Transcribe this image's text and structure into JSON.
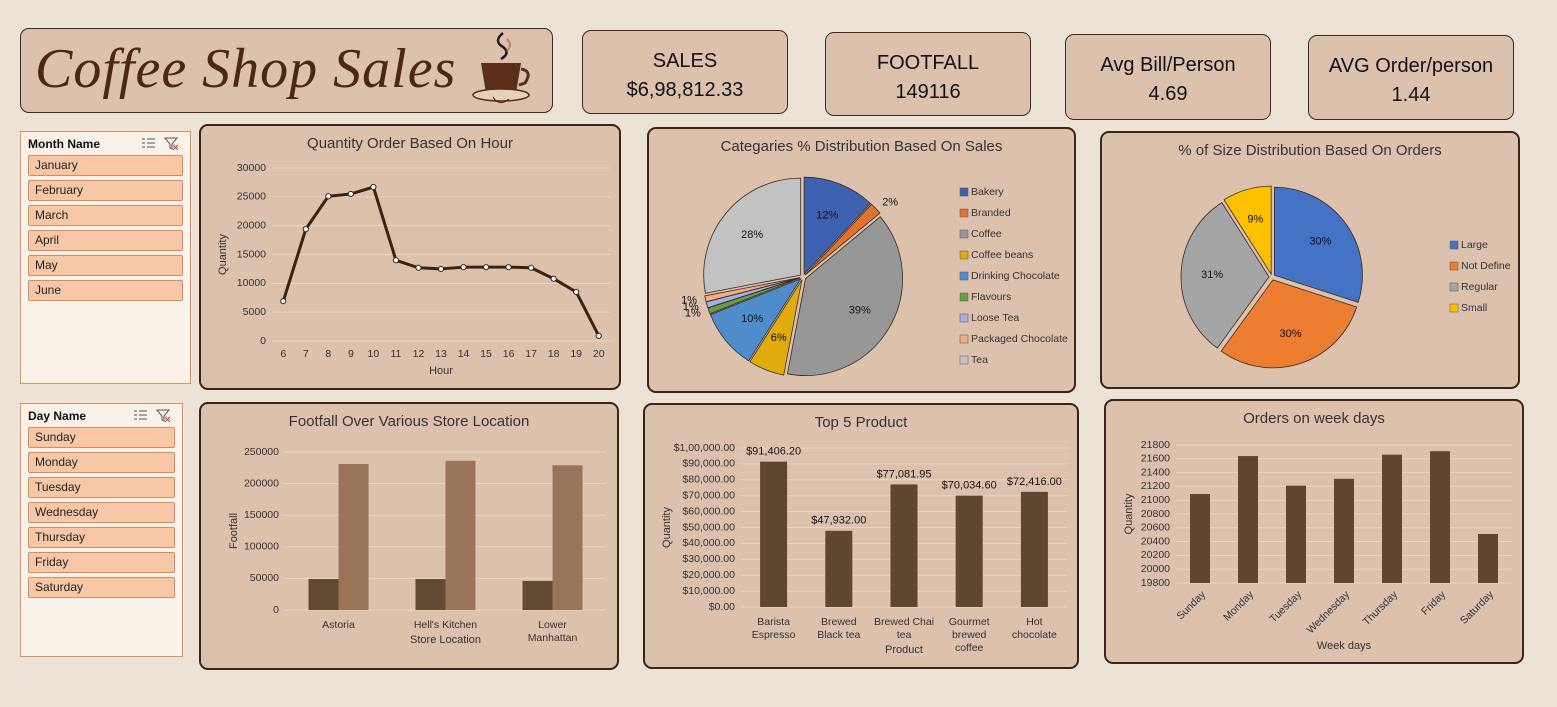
{
  "header": {
    "title": "Coffee Shop Sales"
  },
  "kpis": [
    {
      "label": "SALES",
      "value": "$6,98,812.33"
    },
    {
      "label": "FOOTFALL",
      "value": "149116"
    },
    {
      "label": "Avg Bill/Person",
      "value": "4.69"
    },
    {
      "label": "AVG Order/person",
      "value": "1.44"
    }
  ],
  "slicers": [
    {
      "title": "Month Name",
      "items": [
        "January",
        "February",
        "March",
        "April",
        "May",
        "June"
      ]
    },
    {
      "title": "Day Name",
      "items": [
        "Sunday",
        "Monday",
        "Tuesday",
        "Wednesday",
        "Thursday",
        "Friday",
        "Saturday"
      ]
    }
  ],
  "chart_data": [
    {
      "type": "line",
      "title": "Quantity Order Based On Hour",
      "x": [
        6,
        7,
        8,
        9,
        10,
        11,
        12,
        13,
        14,
        15,
        16,
        17,
        18,
        19,
        20
      ],
      "values": [
        6900,
        19400,
        25100,
        25500,
        26700,
        14000,
        12700,
        12500,
        12800,
        12800,
        12800,
        12700,
        10800,
        8500,
        900
      ],
      "color": "#3b2314",
      "xlim": [
        5.5,
        20.5
      ],
      "xticks": [
        6,
        7,
        8,
        9,
        10,
        11,
        12,
        13,
        14,
        15,
        16,
        17,
        18,
        19,
        20
      ],
      "ylim": [
        0,
        30000
      ],
      "yticks": [
        0,
        5000,
        10000,
        15000,
        20000,
        25000,
        30000
      ],
      "xlabel": "Hour",
      "ylabel": "Quantity",
      "grid": true
    },
    {
      "type": "pie",
      "title": "Categaries % Distribution Based On Sales",
      "categories": [
        "Bakery",
        "Branded",
        "Coffee",
        "Coffee beans",
        "Drinking Chocolate",
        "Flavours",
        "Loose Tea",
        "Packaged Chocolate",
        "Tea"
      ],
      "values": [
        12,
        2,
        39,
        6,
        10,
        1,
        1,
        1,
        28
      ],
      "value_labels": [
        "12%",
        "2%",
        "39%",
        "6%",
        "10%",
        "1%",
        "1%",
        "1%",
        "28%"
      ],
      "colors": [
        "#3f62b0",
        "#e0742e",
        "#979797",
        "#e0ab0c",
        "#4f8ccc",
        "#64a043",
        "#a2b1e6",
        "#f2ad85",
        "#c2c2c2"
      ],
      "legend": "right"
    },
    {
      "type": "pie",
      "title": "% of Size Distribution Based On Orders",
      "categories": [
        "Large",
        "Not Define",
        "Regular",
        "Small"
      ],
      "values": [
        30,
        30,
        31,
        9
      ],
      "value_labels": [
        "30%",
        "30%",
        "31%",
        "9%"
      ],
      "colors": [
        "#4472c4",
        "#ed7d31",
        "#a5a5a5",
        "#ffc000"
      ],
      "legend": "right"
    },
    {
      "type": "bar",
      "title": "Footfall Over Various Store Location",
      "categories": [
        "Astoria",
        "Hell's Kitchen",
        "Lower Manhattan"
      ],
      "series": [
        {
          "color": "#634a33",
          "values": [
            49000,
            49000,
            46000
          ]
        },
        {
          "color": "#9a7459",
          "values": [
            231000,
            236000,
            229000
          ]
        }
      ],
      "ylim": [
        0,
        250000
      ],
      "yticks": [
        0,
        50000,
        100000,
        150000,
        200000,
        250000
      ],
      "xlabel": "Store Location",
      "ylabel": "Footfall",
      "grid": true
    },
    {
      "type": "bar",
      "title": "Top 5 Product",
      "categories": [
        "Barista Espresso",
        "Brewed Black tea",
        "Brewed Chai tea",
        "Gourmet brewed coffee",
        "Hot chocolate"
      ],
      "values": [
        91406.2,
        47932.0,
        77081.95,
        70034.6,
        72416.0
      ],
      "value_labels": [
        "$91,406.20",
        "$47,932.00",
        "$77,081.95",
        "$70,034.60",
        "$72,416.00"
      ],
      "color": "#5f4630",
      "ylim": [
        0,
        100000
      ],
      "yticks": [
        {
          "value": 0,
          "label": "$0.00"
        },
        {
          "value": 10000,
          "label": "$10,000.00"
        },
        {
          "value": 20000,
          "label": "$20,000.00"
        },
        {
          "value": 30000,
          "label": "$30,000.00"
        },
        {
          "value": 40000,
          "label": "$40,000.00"
        },
        {
          "value": 50000,
          "label": "$50,000.00"
        },
        {
          "value": 60000,
          "label": "$60,000.00"
        },
        {
          "value": 70000,
          "label": "$70,000.00"
        },
        {
          "value": 80000,
          "label": "$80,000.00"
        },
        {
          "value": 90000,
          "label": "$90,000.00"
        },
        {
          "value": 100000,
          "label": "$1,00,000.00"
        }
      ],
      "xlabel": "Product",
      "ylabel": "Quantity",
      "grid": true
    },
    {
      "type": "bar",
      "title": "Orders on week days",
      "categories": [
        "Sunday",
        "Monday",
        "Tuesday",
        "Wednesday",
        "Thursday",
        "Friday",
        "Saturday"
      ],
      "values": [
        21090,
        21640,
        21210,
        21310,
        21660,
        21710,
        20510
      ],
      "color": "#5f4630",
      "ylim": [
        19800,
        21800
      ],
      "yticks": [
        19800,
        20000,
        20200,
        20400,
        20600,
        20800,
        21000,
        21200,
        21400,
        21600,
        21800
      ],
      "xlabel": "Week days",
      "ylabel": "Quantity",
      "grid": true
    }
  ]
}
